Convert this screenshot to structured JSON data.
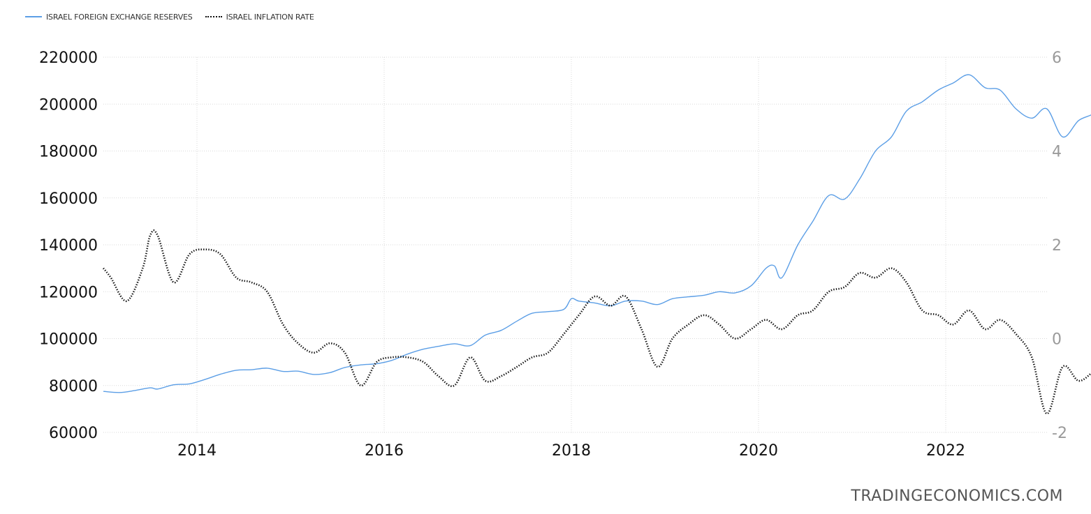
{
  "chart_data": {
    "type": "line",
    "legend_position": "top-left",
    "grid": true,
    "x_range": [
      2013.0,
      2023.0
    ],
    "x_ticks": [
      2014,
      2016,
      2018,
      2020,
      2022
    ],
    "y_left": {
      "ticks": [
        60000,
        80000,
        100000,
        120000,
        140000,
        160000,
        180000,
        200000,
        220000
      ],
      "range": [
        60000,
        220000
      ]
    },
    "y_right": {
      "ticks": [
        -2,
        0,
        2,
        4,
        6
      ],
      "range": [
        -2,
        6
      ]
    },
    "series": [
      {
        "name": "ISRAEL FOREIGN EXCHANGE RESERVES",
        "axis": "left",
        "color": "#5b9ee6",
        "style": "solid",
        "points": [
          [
            2013.0,
            77500
          ],
          [
            2013.17,
            77000
          ],
          [
            2013.33,
            77800
          ],
          [
            2013.5,
            79000
          ],
          [
            2013.58,
            78500
          ],
          [
            2013.75,
            80300
          ],
          [
            2013.92,
            80700
          ],
          [
            2014.08,
            82500
          ],
          [
            2014.25,
            84800
          ],
          [
            2014.42,
            86500
          ],
          [
            2014.58,
            86700
          ],
          [
            2014.75,
            87400
          ],
          [
            2014.92,
            86000
          ],
          [
            2015.08,
            86100
          ],
          [
            2015.25,
            84700
          ],
          [
            2015.42,
            85500
          ],
          [
            2015.58,
            87700
          ],
          [
            2015.75,
            88800
          ],
          [
            2015.92,
            89300
          ],
          [
            2016.08,
            90700
          ],
          [
            2016.25,
            93400
          ],
          [
            2016.42,
            95500
          ],
          [
            2016.58,
            96700
          ],
          [
            2016.75,
            97800
          ],
          [
            2016.92,
            97000
          ],
          [
            2017.08,
            101500
          ],
          [
            2017.25,
            103500
          ],
          [
            2017.42,
            107500
          ],
          [
            2017.58,
            110800
          ],
          [
            2017.75,
            111500
          ],
          [
            2017.92,
            112500
          ],
          [
            2018.0,
            117000
          ],
          [
            2018.08,
            116000
          ],
          [
            2018.25,
            115200
          ],
          [
            2018.42,
            114000
          ],
          [
            2018.58,
            116000
          ],
          [
            2018.75,
            116000
          ],
          [
            2018.92,
            114500
          ],
          [
            2019.08,
            117000
          ],
          [
            2019.25,
            117800
          ],
          [
            2019.42,
            118500
          ],
          [
            2019.58,
            120000
          ],
          [
            2019.75,
            119500
          ],
          [
            2019.92,
            122500
          ],
          [
            2020.08,
            130000
          ],
          [
            2020.17,
            131000
          ],
          [
            2020.25,
            126000
          ],
          [
            2020.42,
            140000
          ],
          [
            2020.58,
            150000
          ],
          [
            2020.75,
            161000
          ],
          [
            2020.92,
            159500
          ],
          [
            2021.08,
            168000
          ],
          [
            2021.25,
            180000
          ],
          [
            2021.42,
            186000
          ],
          [
            2021.58,
            197000
          ],
          [
            2021.75,
            201000
          ],
          [
            2021.92,
            206000
          ],
          [
            2022.08,
            209000
          ],
          [
            2022.25,
            212500
          ],
          [
            2022.42,
            207000
          ],
          [
            2022.58,
            206000
          ],
          [
            2022.75,
            198000
          ],
          [
            2022.92,
            194000
          ],
          [
            2023.08,
            198000
          ],
          [
            2023.25,
            186000
          ],
          [
            2023.42,
            193000
          ],
          [
            2023.58,
            196000
          ],
          [
            2023.67,
            201000
          ]
        ]
      },
      {
        "name": "ISRAEL INFLATION RATE",
        "axis": "right",
        "color": "#111111",
        "style": "dotted",
        "points": [
          [
            2013.0,
            1.5
          ],
          [
            2013.08,
            1.3
          ],
          [
            2013.25,
            0.8
          ],
          [
            2013.42,
            1.5
          ],
          [
            2013.5,
            2.2
          ],
          [
            2013.58,
            2.2
          ],
          [
            2013.75,
            1.2
          ],
          [
            2013.92,
            1.8
          ],
          [
            2014.08,
            1.9
          ],
          [
            2014.25,
            1.8
          ],
          [
            2014.42,
            1.3
          ],
          [
            2014.58,
            1.2
          ],
          [
            2014.75,
            1.0
          ],
          [
            2014.92,
            0.3
          ],
          [
            2015.08,
            -0.1
          ],
          [
            2015.25,
            -0.3
          ],
          [
            2015.42,
            -0.1
          ],
          [
            2015.58,
            -0.3
          ],
          [
            2015.75,
            -1.0
          ],
          [
            2015.92,
            -0.5
          ],
          [
            2016.08,
            -0.4
          ],
          [
            2016.25,
            -0.4
          ],
          [
            2016.42,
            -0.5
          ],
          [
            2016.58,
            -0.8
          ],
          [
            2016.75,
            -1.0
          ],
          [
            2016.92,
            -0.4
          ],
          [
            2017.08,
            -0.9
          ],
          [
            2017.25,
            -0.8
          ],
          [
            2017.42,
            -0.6
          ],
          [
            2017.58,
            -0.4
          ],
          [
            2017.75,
            -0.3
          ],
          [
            2017.92,
            0.1
          ],
          [
            2018.08,
            0.5
          ],
          [
            2018.25,
            0.9
          ],
          [
            2018.42,
            0.7
          ],
          [
            2018.58,
            0.9
          ],
          [
            2018.75,
            0.2
          ],
          [
            2018.92,
            -0.6
          ],
          [
            2019.08,
            -0.0
          ],
          [
            2019.25,
            0.3
          ],
          [
            2019.42,
            0.5
          ],
          [
            2019.58,
            0.3
          ],
          [
            2019.75,
            0.0
          ],
          [
            2019.92,
            0.2
          ],
          [
            2020.08,
            0.4
          ],
          [
            2020.25,
            0.2
          ],
          [
            2020.42,
            0.5
          ],
          [
            2020.58,
            0.6
          ],
          [
            2020.75,
            1.0
          ],
          [
            2020.92,
            1.1
          ],
          [
            2021.08,
            1.4
          ],
          [
            2021.25,
            1.3
          ],
          [
            2021.42,
            1.5
          ],
          [
            2021.58,
            1.2
          ],
          [
            2021.75,
            0.6
          ],
          [
            2021.92,
            0.5
          ],
          [
            2022.08,
            0.3
          ],
          [
            2022.25,
            0.6
          ],
          [
            2022.42,
            0.2
          ],
          [
            2022.58,
            0.4
          ],
          [
            2022.75,
            0.1
          ],
          [
            2022.92,
            -0.4
          ],
          [
            2023.08,
            -1.6
          ],
          [
            2023.25,
            -0.6
          ],
          [
            2023.42,
            -0.9
          ],
          [
            2023.58,
            -0.7
          ],
          [
            2023.67,
            -0.6
          ]
        ]
      }
    ]
  },
  "legend": [
    {
      "label": "ISRAEL FOREIGN EXCHANGE RESERVES",
      "color": "#5b9ee6",
      "style": "solid"
    },
    {
      "label": "ISRAEL INFLATION RATE",
      "color": "#111111",
      "style": "dotted"
    }
  ],
  "watermark": "TRADINGECONOMICS.COM"
}
